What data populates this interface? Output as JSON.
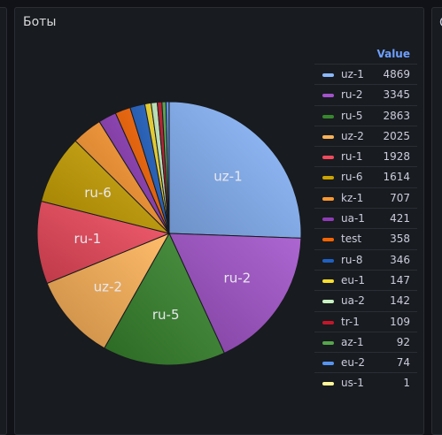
{
  "panel": {
    "title": "Боты",
    "right_peek": "C"
  },
  "legend": {
    "header": "Value"
  },
  "chart_data": {
    "type": "pie",
    "title": "Боты",
    "value_header": "Value",
    "series": [
      {
        "name": "uz-1",
        "value": 4869,
        "color": "#8ab8ff"
      },
      {
        "name": "ru-2",
        "value": 3345,
        "color": "#a352cc"
      },
      {
        "name": "ru-5",
        "value": 2863,
        "color": "#37872d"
      },
      {
        "name": "uz-2",
        "value": 2025,
        "color": "#ffb357"
      },
      {
        "name": "ru-1",
        "value": 1928,
        "color": "#f2495c"
      },
      {
        "name": "ru-6",
        "value": 1614,
        "color": "#cca300"
      },
      {
        "name": "kz-1",
        "value": 707,
        "color": "#ff9830"
      },
      {
        "name": "ua-1",
        "value": 421,
        "color": "#8f3bb8"
      },
      {
        "name": "test",
        "value": 358,
        "color": "#fa6400"
      },
      {
        "name": "ru-8",
        "value": 346,
        "color": "#1f60c4"
      },
      {
        "name": "eu-1",
        "value": 147,
        "color": "#fade2a"
      },
      {
        "name": "ua-2",
        "value": 142,
        "color": "#c8f2c2"
      },
      {
        "name": "tr-1",
        "value": 109,
        "color": "#c4162a"
      },
      {
        "name": "az-1",
        "value": 92,
        "color": "#56a64b"
      },
      {
        "name": "eu-2",
        "value": 74,
        "color": "#5794f2"
      },
      {
        "name": "us-1",
        "value": 1,
        "color": "#fff899"
      }
    ],
    "slice_labels": [
      "uz-1",
      "ru-2",
      "ru-5",
      "uz-2",
      "ru-1",
      "ru-6"
    ],
    "legend_placement": "right"
  }
}
